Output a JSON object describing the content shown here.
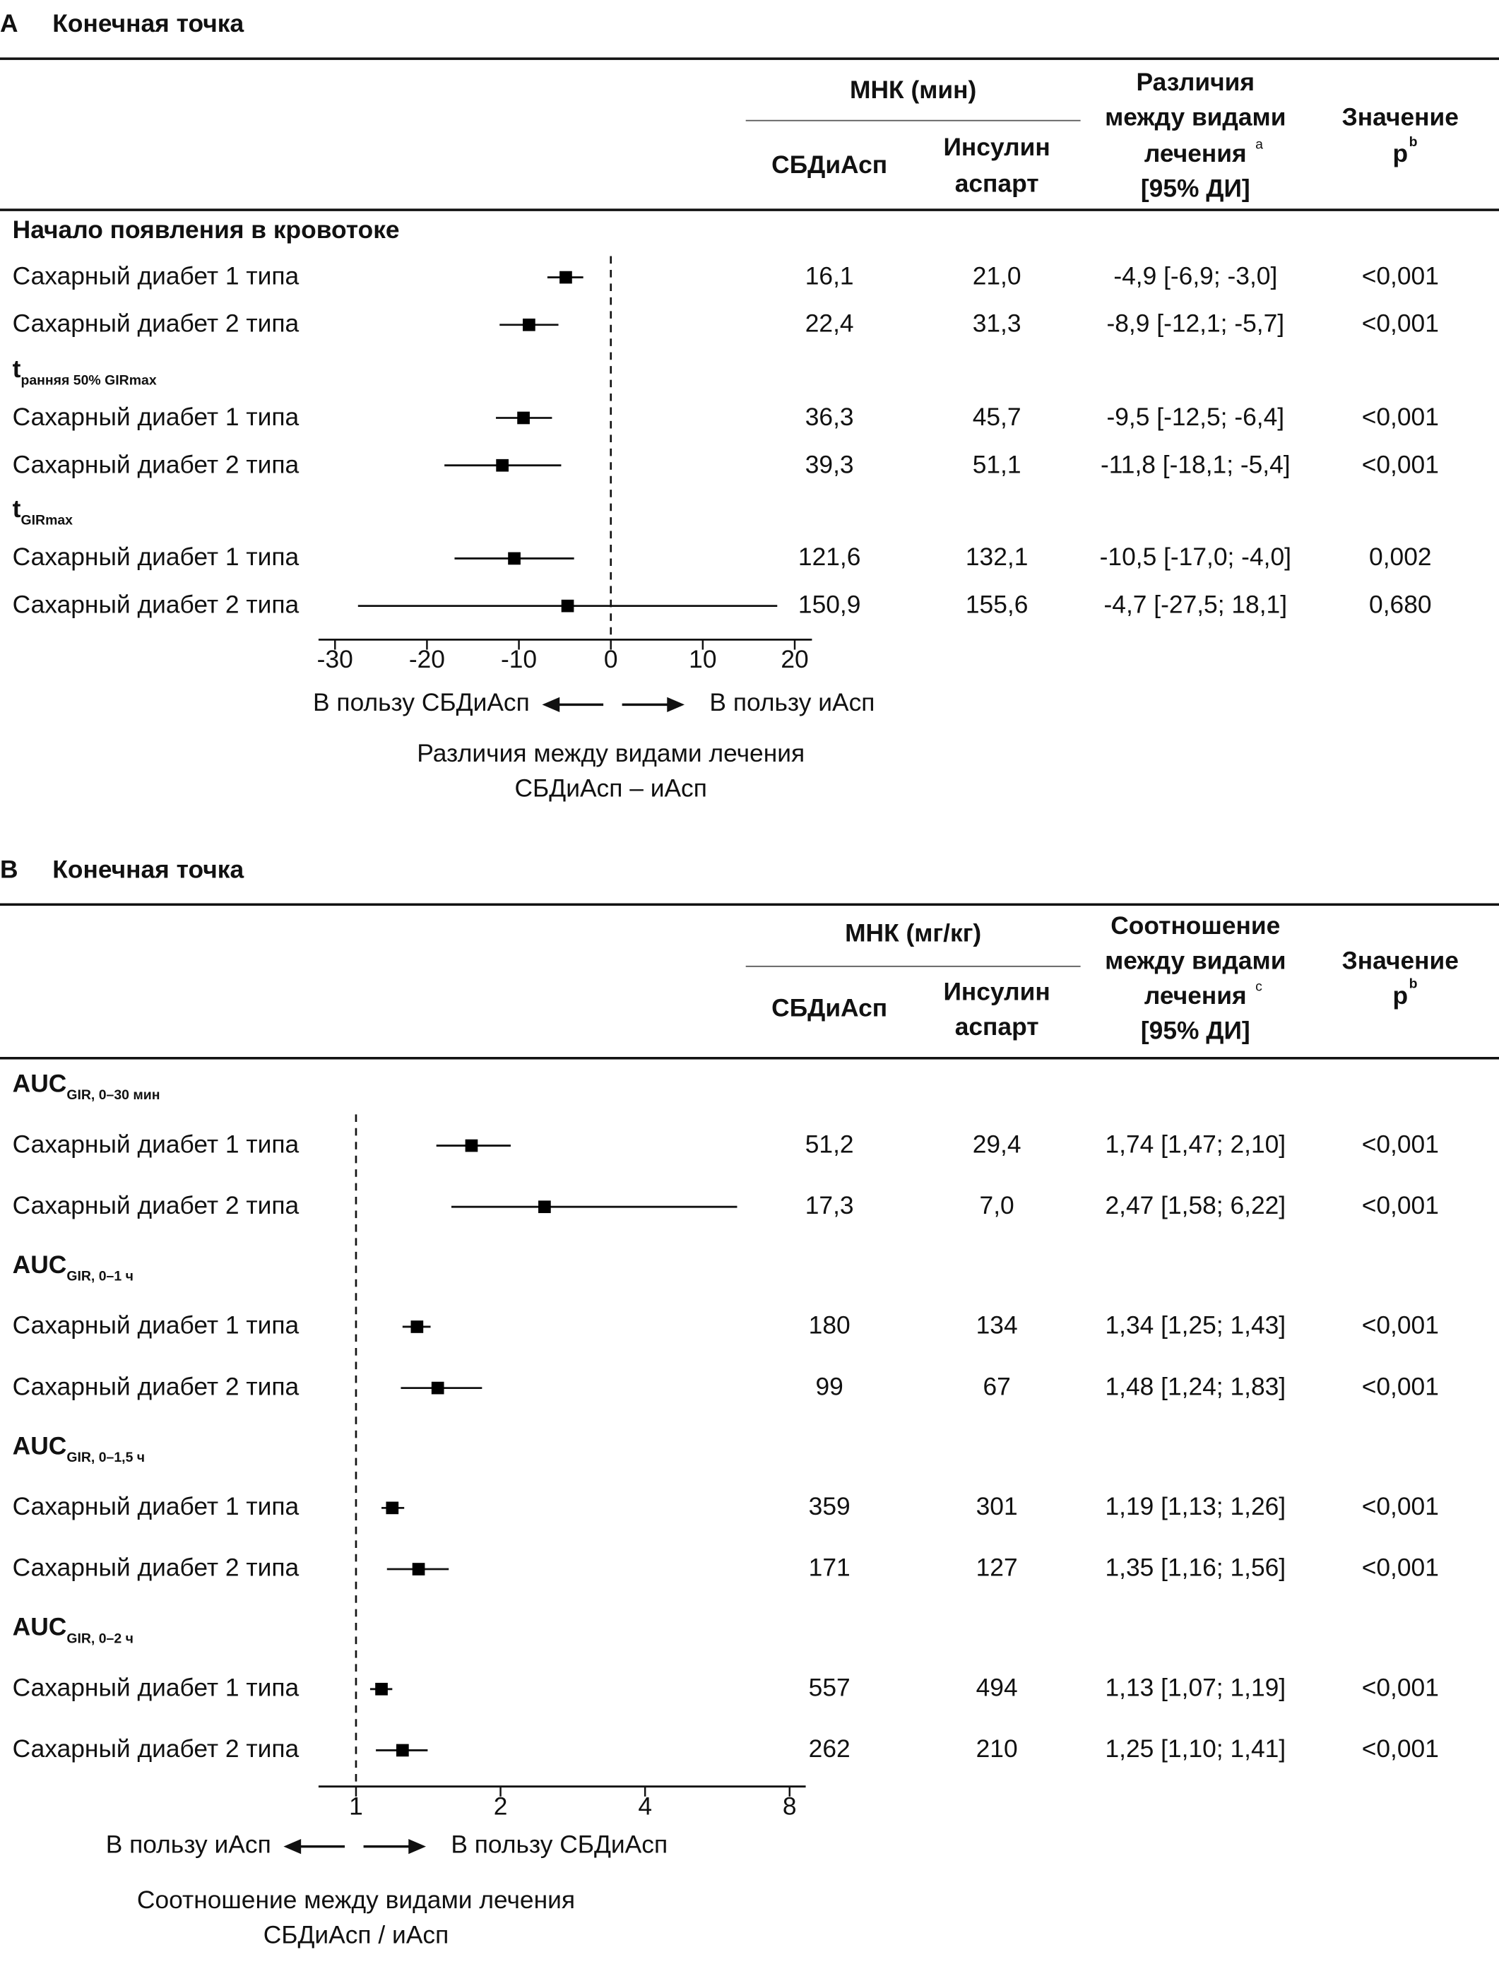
{
  "panels": [
    {
      "letter": "A",
      "title": "Конечная точка",
      "h_group": "МНК (мин)",
      "h_sbd": "СБДиАсп",
      "h_iasp1": "Инсулин",
      "h_iasp2": "аспарт",
      "h_diff": [
        "Различия",
        "между видами",
        "лечения",
        "[95% ДИ]"
      ],
      "h_diff_sup": "a",
      "h_p1": "Значение",
      "h_p2": "p",
      "h_p_sup": "b",
      "groups": [
        {
          "label": "Начало появления в кровотоке",
          "sub": "",
          "rows": [
            {
              "label": "Сахарный диабет 1 типа",
              "sbd": "16,1",
              "iasp": "21,0",
              "diff": "-4,9 [-6,9; -3,0]",
              "p": "<0,001"
            },
            {
              "label": "Сахарный диабет 2 типа",
              "sbd": "22,4",
              "iasp": "31,3",
              "diff": "-8,9 [-12,1; -5,7]",
              "p": "<0,001"
            }
          ]
        },
        {
          "label": "t",
          "sub": "ранняя 50% GIRmax",
          "rows": [
            {
              "label": "Сахарный диабет 1 типа",
              "sbd": "36,3",
              "iasp": "45,7",
              "diff": "-9,5 [-12,5; -6,4]",
              "p": "<0,001"
            },
            {
              "label": "Сахарный диабет 2 типа",
              "sbd": "39,3",
              "iasp": "51,1",
              "diff": "-11,8 [-18,1; -5,4]",
              "p": "<0,001"
            }
          ]
        },
        {
          "label": "t",
          "sub": "GIRmax",
          "rows": [
            {
              "label": "Сахарный диабет 1 типа",
              "sbd": "121,6",
              "iasp": "132,1",
              "diff": "-10,5 [-17,0; -4,0]",
              "p": "0,002"
            },
            {
              "label": "Сахарный диабет 2 типа",
              "sbd": "150,9",
              "iasp": "155,6",
              "diff": "-4,7 [-27,5; 18,1]",
              "p": "0,680"
            }
          ]
        }
      ],
      "arrow_left": "В пользу СБДиАсп",
      "arrow_right": "В пользу иАсп",
      "axis_title": [
        "Различия между видами лечения",
        "СБДиАсп – иАсп"
      ]
    },
    {
      "letter": "B",
      "title": "Конечная точка",
      "h_group": "МНК (мг/кг)",
      "h_sbd": "СБДиАсп",
      "h_iasp1": "Инсулин",
      "h_iasp2": "аспарт",
      "h_diff": [
        "Соотношение",
        "между видами",
        "лечения",
        "[95% ДИ]"
      ],
      "h_diff_sup": "c",
      "h_p1": "Значение",
      "h_p2": "p",
      "h_p_sup": "b",
      "groups": [
        {
          "label": "AUC",
          "sub": "GIR, 0–30 мин",
          "rows": [
            {
              "label": "Сахарный диабет 1 типа",
              "sbd": "51,2",
              "iasp": "29,4",
              "diff": "1,74 [1,47; 2,10]",
              "p": "<0,001"
            },
            {
              "label": "Сахарный диабет 2 типа",
              "sbd": "17,3",
              "iasp": "7,0",
              "diff": "2,47 [1,58; 6,22]",
              "p": "<0,001"
            }
          ]
        },
        {
          "label": "AUC",
          "sub": "GIR, 0–1 ч",
          "rows": [
            {
              "label": "Сахарный диабет 1 типа",
              "sbd": "180",
              "iasp": "134",
              "diff": "1,34 [1,25; 1,43]",
              "p": "<0,001"
            },
            {
              "label": "Сахарный диабет 2 типа",
              "sbd": "99",
              "iasp": "67",
              "diff": "1,48 [1,24; 1,83]",
              "p": "<0,001"
            }
          ]
        },
        {
          "label": "AUC",
          "sub": "GIR, 0–1,5 ч",
          "rows": [
            {
              "label": "Сахарный диабет 1 типа",
              "sbd": "359",
              "iasp": "301",
              "diff": "1,19 [1,13; 1,26]",
              "p": "<0,001"
            },
            {
              "label": "Сахарный диабет 2 типа",
              "sbd": "171",
              "iasp": "127",
              "diff": "1,35 [1,16; 1,56]",
              "p": "<0,001"
            }
          ]
        },
        {
          "label": "AUC",
          "sub": "GIR, 0–2 ч",
          "rows": [
            {
              "label": "Сахарный диабет 1 типа",
              "sbd": "557",
              "iasp": "494",
              "diff": "1,13 [1,07; 1,19]",
              "p": "<0,001"
            },
            {
              "label": "Сахарный диабет 2 типа",
              "sbd": "262",
              "iasp": "210",
              "diff": "1,25 [1,10; 1,41]",
              "p": "<0,001"
            }
          ]
        }
      ],
      "arrow_left": "В пользу иАсп",
      "arrow_right": "В пользу СБДиАсп",
      "axis_title": [
        "Соотношение между видами лечения",
        "СБДиАсп / иАсп"
      ]
    }
  ],
  "chart_data": [
    {
      "type": "forest",
      "title": "A Конечная точка",
      "xlabel": "Различия между видами лечения СБДиАсп – иАсп",
      "scale": "linear",
      "xlim": [
        -30,
        20
      ],
      "ticks": [
        -30,
        -20,
        -10,
        0,
        10,
        20
      ],
      "tick_labels": [
        "-30",
        "-20",
        "-10",
        "0",
        "10",
        "20"
      ],
      "reference": 0,
      "estimates": [
        -4.9,
        -8.9,
        -9.5,
        -11.8,
        -10.5,
        -4.7
      ],
      "lower": [
        -6.9,
        -12.1,
        -12.5,
        -18.1,
        -17.0,
        -27.5
      ],
      "upper": [
        -3.0,
        -5.7,
        -6.4,
        -5.4,
        -4.0,
        18.1
      ]
    },
    {
      "type": "forest",
      "title": "B Конечная точка",
      "xlabel": "Соотношение между видами лечения СБДиАсп / иАсп",
      "scale": "log2",
      "xlim": [
        0.85,
        8.6
      ],
      "ticks": [
        1,
        2,
        4,
        8
      ],
      "tick_labels": [
        "1",
        "2",
        "4",
        "8"
      ],
      "reference": 1,
      "estimates": [
        1.74,
        2.47,
        1.34,
        1.48,
        1.19,
        1.35,
        1.13,
        1.25
      ],
      "lower": [
        1.47,
        1.58,
        1.25,
        1.24,
        1.13,
        1.16,
        1.07,
        1.1
      ],
      "upper": [
        2.1,
        6.22,
        1.43,
        1.83,
        1.26,
        1.56,
        1.19,
        1.41
      ]
    }
  ]
}
